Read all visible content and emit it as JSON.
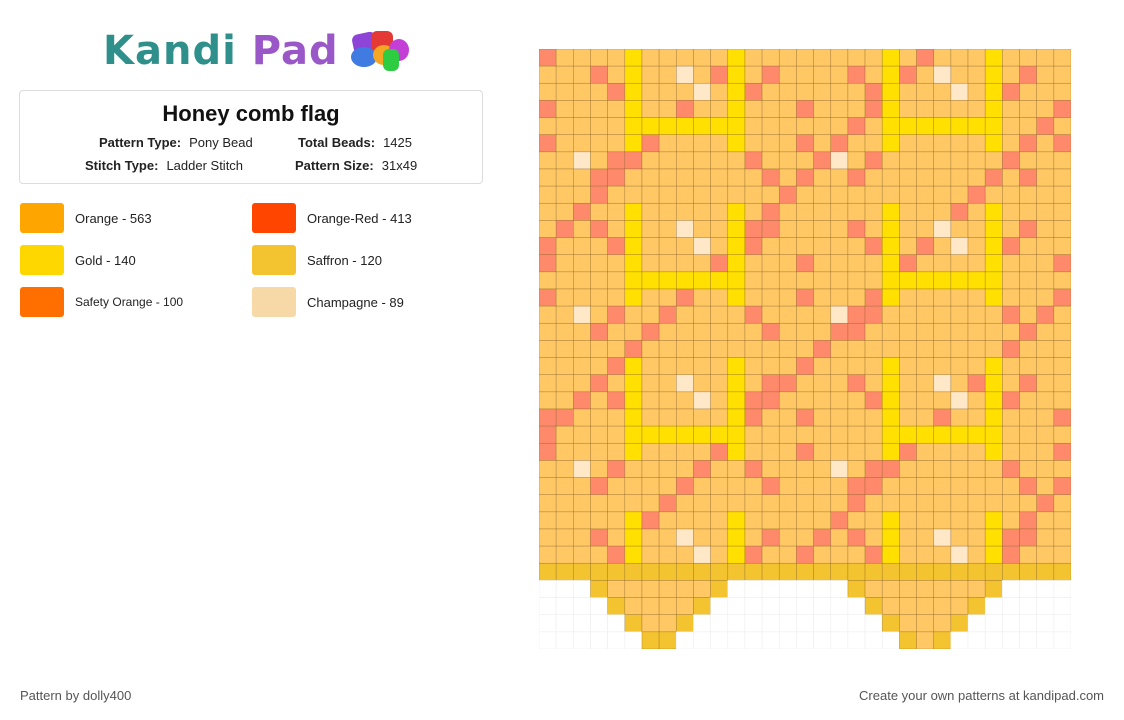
{
  "brand": {
    "part1": "Kandi",
    "part2": "Pad"
  },
  "pattern": {
    "title": "Honey comb flag",
    "type_label": "Pattern Type:",
    "type_value": "Pony Bead",
    "beads_label": "Total Beads:",
    "beads_value": "1425",
    "stitch_label": "Stitch Type:",
    "stitch_value": "Ladder Stitch",
    "size_label": "Pattern Size:",
    "size_value": "31x49"
  },
  "colors": [
    {
      "label": "Orange - 563",
      "hex": "#FFA500"
    },
    {
      "label": "Orange-Red - 413",
      "hex": "#FF4500"
    },
    {
      "label": "Gold - 140",
      "hex": "#FFD700"
    },
    {
      "label": "Saffron - 120",
      "hex": "#F4C430"
    },
    {
      "label": "Safety Orange - 100",
      "hex": "#FF6F00"
    },
    {
      "label": "Champagne - 89",
      "hex": "#F7D9A8"
    }
  ],
  "footer": {
    "left": "Pattern by dolly400",
    "right": "Create your own patterns at kandipad.com"
  }
}
